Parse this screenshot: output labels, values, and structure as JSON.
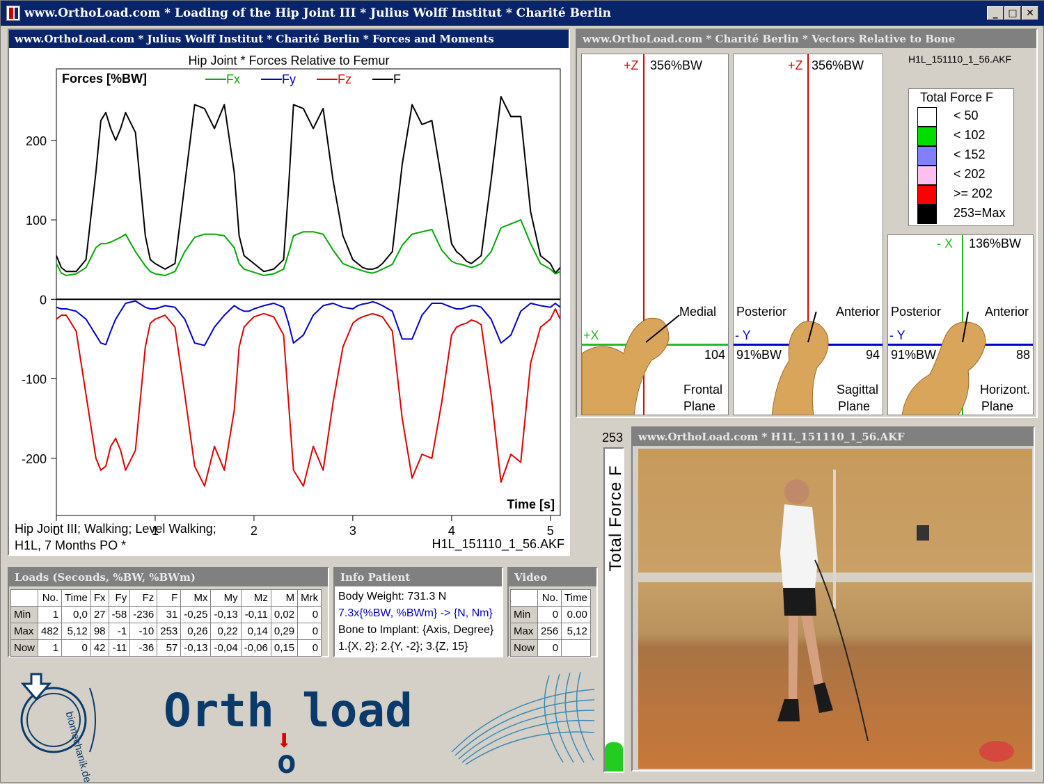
{
  "window": {
    "title": "www.OrthoLoad.com * Loading of the Hip Joint III * Julius Wolff Institut * Charité Berlin",
    "buttons": {
      "minimize": "_",
      "maximize": "□",
      "close": "✕"
    }
  },
  "forces_panel": {
    "header": "www.OrthoLoad.com * Julius Wolff Institut * Charité Berlin * Forces and Moments",
    "caption1": "Hip Joint III; Walking; Level Walking;",
    "caption2": "H1L, 7 Months PO  *",
    "file": "H1L_151110_1_56.AKF"
  },
  "chart_data": {
    "type": "line",
    "title": "Hip Joint * Forces  Relative to Femur",
    "ylabel": "Forces  [%BW]",
    "xlabel": "Time  [s]",
    "xlim": [
      0,
      5.1
    ],
    "ylim": [
      -272,
      290
    ],
    "xticks": [
      "0",
      "1",
      "2",
      "3",
      "4",
      "5"
    ],
    "yticks": [
      "200",
      "100",
      "0",
      "-100",
      "-200"
    ],
    "ytick_values": [
      200,
      100,
      0,
      -100,
      -200
    ],
    "legend": [
      {
        "name": "Fx",
        "color": "#00aa00"
      },
      {
        "name": "Fy",
        "color": "#0000cc"
      },
      {
        "name": "Fz",
        "color": "#e00000"
      },
      {
        "name": "F",
        "color": "#000000"
      }
    ],
    "x": [
      0,
      0.05,
      0.1,
      0.2,
      0.3,
      0.4,
      0.45,
      0.5,
      0.55,
      0.6,
      0.65,
      0.7,
      0.8,
      0.9,
      0.95,
      1.0,
      1.1,
      1.2,
      1.3,
      1.4,
      1.5,
      1.6,
      1.7,
      1.8,
      1.85,
      1.9,
      1.95,
      2.0,
      2.05,
      2.1,
      2.2,
      2.3,
      2.35,
      2.4,
      2.5,
      2.6,
      2.7,
      2.8,
      2.9,
      3.0,
      3.05,
      3.1,
      3.15,
      3.2,
      3.25,
      3.3,
      3.4,
      3.5,
      3.6,
      3.7,
      3.8,
      3.9,
      4.0,
      4.05,
      4.1,
      4.15,
      4.2,
      4.25,
      4.3,
      4.4,
      4.5,
      4.6,
      4.7,
      4.8,
      4.9,
      5.0,
      5.05,
      5.1
    ],
    "series": [
      {
        "name": "F",
        "color": "#000000",
        "values": [
          55,
          40,
          35,
          35,
          50,
          160,
          225,
          235,
          215,
          200,
          215,
          235,
          210,
          80,
          50,
          45,
          38,
          45,
          145,
          245,
          240,
          215,
          245,
          160,
          80,
          55,
          50,
          45,
          40,
          35,
          38,
          50,
          140,
          245,
          240,
          215,
          240,
          150,
          80,
          50,
          45,
          40,
          38,
          38,
          40,
          45,
          60,
          170,
          245,
          220,
          225,
          150,
          70,
          60,
          55,
          48,
          45,
          50,
          55,
          150,
          255,
          230,
          230,
          110,
          55,
          45,
          33,
          40
        ]
      },
      {
        "name": "Fx",
        "color": "#00aa00",
        "values": [
          45,
          33,
          30,
          32,
          40,
          65,
          70,
          70,
          72,
          75,
          78,
          82,
          60,
          42,
          35,
          32,
          30,
          35,
          60,
          78,
          82,
          82,
          80,
          65,
          45,
          38,
          36,
          34,
          32,
          30,
          32,
          38,
          58,
          80,
          85,
          85,
          82,
          62,
          45,
          40,
          38,
          36,
          34,
          33,
          35,
          38,
          44,
          68,
          82,
          85,
          88,
          62,
          48,
          45,
          44,
          42,
          40,
          42,
          45,
          60,
          90,
          95,
          100,
          70,
          45,
          38,
          32,
          35
        ]
      },
      {
        "name": "Fy",
        "color": "#0000cc",
        "values": [
          -10,
          -12,
          -12,
          -15,
          -25,
          -45,
          -55,
          -57,
          -40,
          -25,
          -15,
          -5,
          -2,
          -10,
          -12,
          -12,
          -8,
          -10,
          -25,
          -55,
          -58,
          -35,
          -20,
          -8,
          -12,
          -15,
          -15,
          -12,
          -10,
          -8,
          -5,
          -10,
          -30,
          -55,
          -45,
          -20,
          -8,
          -5,
          -10,
          -12,
          -8,
          -6,
          -5,
          -3,
          -5,
          -8,
          -15,
          -50,
          -50,
          -20,
          -5,
          -5,
          -10,
          -12,
          -12,
          -10,
          -8,
          -8,
          -10,
          -25,
          -55,
          -45,
          -15,
          -5,
          -8,
          -10,
          -5,
          -10
        ]
      },
      {
        "name": "Fz",
        "color": "#e00000",
        "values": [
          -25,
          -20,
          -20,
          -40,
          -120,
          -200,
          -215,
          -210,
          -185,
          -175,
          -190,
          -215,
          -190,
          -60,
          -30,
          -25,
          -20,
          -35,
          -120,
          -210,
          -235,
          -185,
          -215,
          -140,
          -60,
          -35,
          -28,
          -22,
          -20,
          -18,
          -22,
          -45,
          -130,
          -215,
          -235,
          -185,
          -215,
          -130,
          -60,
          -30,
          -25,
          -22,
          -20,
          -18,
          -20,
          -22,
          -40,
          -150,
          -225,
          -195,
          -200,
          -130,
          -45,
          -35,
          -32,
          -30,
          -26,
          -28,
          -32,
          -120,
          -230,
          -195,
          -205,
          -80,
          -35,
          -25,
          -12,
          -25
        ]
      }
    ]
  },
  "vectors_panel": {
    "header": "www.OrthoLoad.com * Charité Berlin * Vectors Relative to Bone",
    "file": "H1L_151110_1_56.AKF",
    "frontal": {
      "axis_top": "+Z",
      "force": "356%BW",
      "axis_side": "+X",
      "label": "Medial",
      "value": "104",
      "plane1": "Frontal",
      "plane2": "Plane"
    },
    "sagittal": {
      "axis_top": "+Z",
      "force": "356%BW",
      "axis_side": "- Y",
      "left_label": "Posterior",
      "right_label": "Anterior",
      "pct": "91%BW",
      "value": "94",
      "plane1": "Sagittal",
      "plane2": "Plane"
    },
    "horizontal": {
      "axis_top": "- X",
      "force": "136%BW",
      "axis_side": "- Y",
      "left_label": "Posterior",
      "right_label": "Anterior",
      "pct": "91%BW",
      "value": "88",
      "plane1": "Horizont.",
      "plane2": "Plane"
    },
    "legend": {
      "title": "Total Force F",
      "items": [
        {
          "label": "< 50",
          "color": "#ffffff"
        },
        {
          "label": "< 102",
          "color": "#00dd00"
        },
        {
          "label": "< 152",
          "color": "#8080ff"
        },
        {
          "label": "< 202",
          "color": "#ffc0f0"
        },
        {
          "label": ">= 202",
          "color": "#ff0000"
        },
        {
          "label": "253=Max",
          "color": "#000000"
        }
      ]
    }
  },
  "total_force_bar": {
    "max": "253",
    "label": "Total  Force  F",
    "fill_fraction": 0.09,
    "color": "#22cc22"
  },
  "video_panel": {
    "header": "www.OrthoLoad.com * H1L_151110_1_56.AKF"
  },
  "loads": {
    "header": "Loads    (Seconds, %BW, %BWm)",
    "columns": [
      "",
      "No.",
      "Time",
      "Fx",
      "Fy",
      "Fz",
      "F",
      "Mx",
      "My",
      "Mz",
      "M",
      "Mrk"
    ],
    "rows": [
      [
        "Min",
        "1",
        "0,0",
        "27",
        "-58",
        "-236",
        "31",
        "-0,25",
        "-0,13",
        "-0,11",
        "0,02",
        "0"
      ],
      [
        "Max",
        "482",
        "5,12",
        "98",
        "-1",
        "-10",
        "253",
        "0,26",
        "0,22",
        "0,14",
        "0,29",
        "0"
      ],
      [
        "Now",
        "1",
        "0",
        "42",
        "-11",
        "-36",
        "57",
        "-0,13",
        "-0,04",
        "-0,06",
        "0,15",
        "0"
      ]
    ]
  },
  "info_patient": {
    "header": "Info Patient",
    "line1": "Body Weight:     731.3 N",
    "line2": "7.3x{%BW, %BWm} -> {N, Nm}",
    "line3": "Bone to Implant: {Axis, Degree}",
    "line4": "1.{X, 2}; 2.{Y, -2}; 3.{Z, 15}"
  },
  "video_table": {
    "header": "Video",
    "columns": [
      "",
      "No.",
      "Time"
    ],
    "rows": [
      [
        "Min",
        "0",
        "0.00"
      ],
      [
        "Max",
        "256",
        "5,12"
      ],
      [
        "Now",
        "0",
        ""
      ]
    ]
  },
  "logos": {
    "biomechanik": "biomechanik.de",
    "orthoload_left": "Orth",
    "orthoload_o": "o",
    "orthoload_right": "load"
  }
}
